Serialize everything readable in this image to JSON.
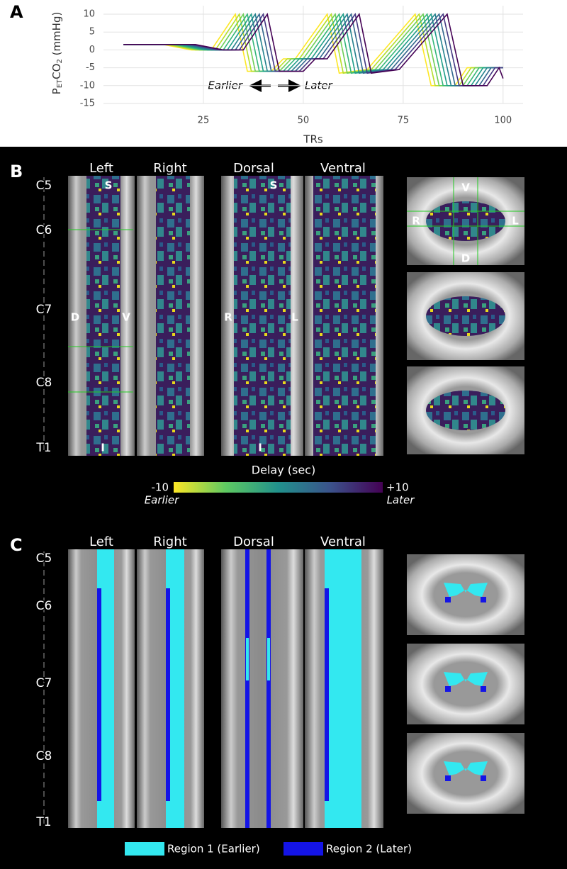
{
  "chart_data": {
    "type": "line",
    "panel_label": "A",
    "x_label": "TRs",
    "y_label_parts": [
      "P",
      "ET",
      "CO",
      "2",
      " (mmHg)"
    ],
    "annotations": [
      "Earlier",
      "Later"
    ],
    "xlim": [
      0,
      105
    ],
    "xticks": [
      25,
      50,
      75,
      100
    ],
    "ylim": [
      -15,
      10
    ],
    "yticks": [
      -15,
      -10,
      -5,
      0,
      5,
      10
    ],
    "grid": true,
    "series": [
      {
        "color": "#fde725",
        "x": [
          5,
          15,
          22,
          27,
          33,
          36,
          42,
          45,
          48,
          56,
          59,
          66,
          78,
          82,
          88,
          91,
          100
        ],
        "values": [
          1.5,
          1.5,
          0,
          0,
          10,
          -6,
          -6,
          -2.5,
          -2.5,
          10,
          -6.5,
          -5.5,
          10,
          -10,
          -10,
          -5,
          -5
        ]
      },
      {
        "color": "#b5de2b",
        "x": [
          5,
          16,
          23,
          28,
          34,
          37,
          43,
          46,
          49,
          57,
          60,
          67,
          79,
          83,
          89,
          92,
          100
        ],
        "values": [
          1.5,
          1.5,
          0,
          0,
          10,
          -6,
          -6,
          -2.5,
          -2.5,
          10,
          -6.5,
          -5.5,
          10,
          -10,
          -10,
          -5,
          -5
        ]
      },
      {
        "color": "#6ece58",
        "x": [
          5,
          17,
          24,
          29,
          35,
          38,
          44,
          47,
          50,
          58,
          61,
          68,
          80,
          84,
          90,
          93,
          100
        ],
        "values": [
          1.5,
          1.5,
          0,
          0,
          10,
          -6,
          -6,
          -2.5,
          -2.5,
          10,
          -6.5,
          -5.5,
          10,
          -10,
          -10,
          -5,
          -5
        ]
      },
      {
        "color": "#35b779",
        "x": [
          5,
          18,
          25,
          30,
          36,
          39,
          45,
          48,
          51,
          59,
          62,
          69,
          81,
          85,
          91,
          94,
          100
        ],
        "values": [
          1.5,
          1.5,
          0,
          0,
          10,
          -6,
          -6,
          -2.5,
          -2.5,
          10,
          -6.5,
          -5.5,
          10,
          -10,
          -10,
          -5,
          -5
        ]
      },
      {
        "color": "#1f9e89",
        "x": [
          5,
          19,
          26,
          31,
          37,
          40,
          46,
          49,
          52,
          60,
          63,
          70,
          82,
          86,
          92,
          95,
          100
        ],
        "values": [
          1.5,
          1.5,
          0,
          0,
          10,
          -6,
          -6,
          -2.5,
          -2.5,
          10,
          -6.5,
          -5.5,
          10,
          -10,
          -10,
          -5,
          -5
        ]
      },
      {
        "color": "#26828e",
        "x": [
          5,
          20,
          27,
          32,
          38,
          41,
          47,
          50,
          53,
          61,
          64,
          71,
          83,
          87,
          93,
          96,
          100
        ],
        "values": [
          1.5,
          1.5,
          0,
          0,
          10,
          -6,
          -6,
          -2.5,
          -2.5,
          10,
          -6.5,
          -5.5,
          10,
          -10,
          -10,
          -5,
          -5
        ]
      },
      {
        "color": "#31688e",
        "x": [
          5,
          21,
          28,
          33,
          39,
          42,
          48,
          51,
          54,
          62,
          65,
          72,
          84,
          88,
          94,
          97,
          100
        ],
        "values": [
          1.5,
          1.5,
          0,
          0,
          10,
          -6,
          -6,
          -2.5,
          -2.5,
          10,
          -6.5,
          -5.5,
          10,
          -10,
          -10,
          -5,
          -5
        ]
      },
      {
        "color": "#443983",
        "x": [
          5,
          22,
          29,
          34,
          40,
          43,
          49,
          52,
          55,
          63,
          66,
          73,
          85,
          89,
          95,
          98,
          100
        ],
        "values": [
          1.5,
          1.5,
          0,
          0,
          10,
          -6,
          -6,
          -2.5,
          -2.5,
          10,
          -6.5,
          -5.5,
          10,
          -10,
          -10,
          -5,
          -5
        ]
      },
      {
        "color": "#440154",
        "x": [
          5,
          23,
          30,
          35,
          41,
          44,
          50,
          53,
          56,
          64,
          67,
          74,
          86,
          90,
          96,
          99,
          100
        ],
        "values": [
          1.5,
          1.5,
          0,
          0,
          10,
          -6,
          -6,
          -2.5,
          -2.5,
          10,
          -6.5,
          -5.5,
          10,
          -10,
          -10,
          -5,
          -8
        ]
      }
    ]
  },
  "panel_b": {
    "label": "B",
    "columns": [
      "Left",
      "Right",
      "Dorsal",
      "Ventral"
    ],
    "levels": [
      "C5",
      "C6",
      "C7",
      "C8",
      "T1"
    ],
    "orientation": {
      "sagittal": [
        "S",
        "I",
        "D",
        "V"
      ],
      "coronal": [
        "S",
        "I",
        "R",
        "L"
      ],
      "axial": [
        "V",
        "D",
        "R",
        "L"
      ]
    },
    "colorbar": {
      "title": "Delay (sec)",
      "min": {
        "value": -10,
        "label": "-10"
      },
      "max": {
        "value": 10,
        "label": "+10"
      },
      "min_note": "Earlier",
      "max_note": "Later"
    }
  },
  "panel_c": {
    "label": "C",
    "columns": [
      "Left",
      "Right",
      "Dorsal",
      "Ventral"
    ],
    "levels": [
      "C5",
      "C6",
      "C7",
      "C8",
      "T1"
    ],
    "legend": [
      {
        "name": "Region 1 (Earlier)",
        "color": "#33e8f0"
      },
      {
        "name": "Region 2 (Later)",
        "color": "#1414e6"
      }
    ]
  }
}
